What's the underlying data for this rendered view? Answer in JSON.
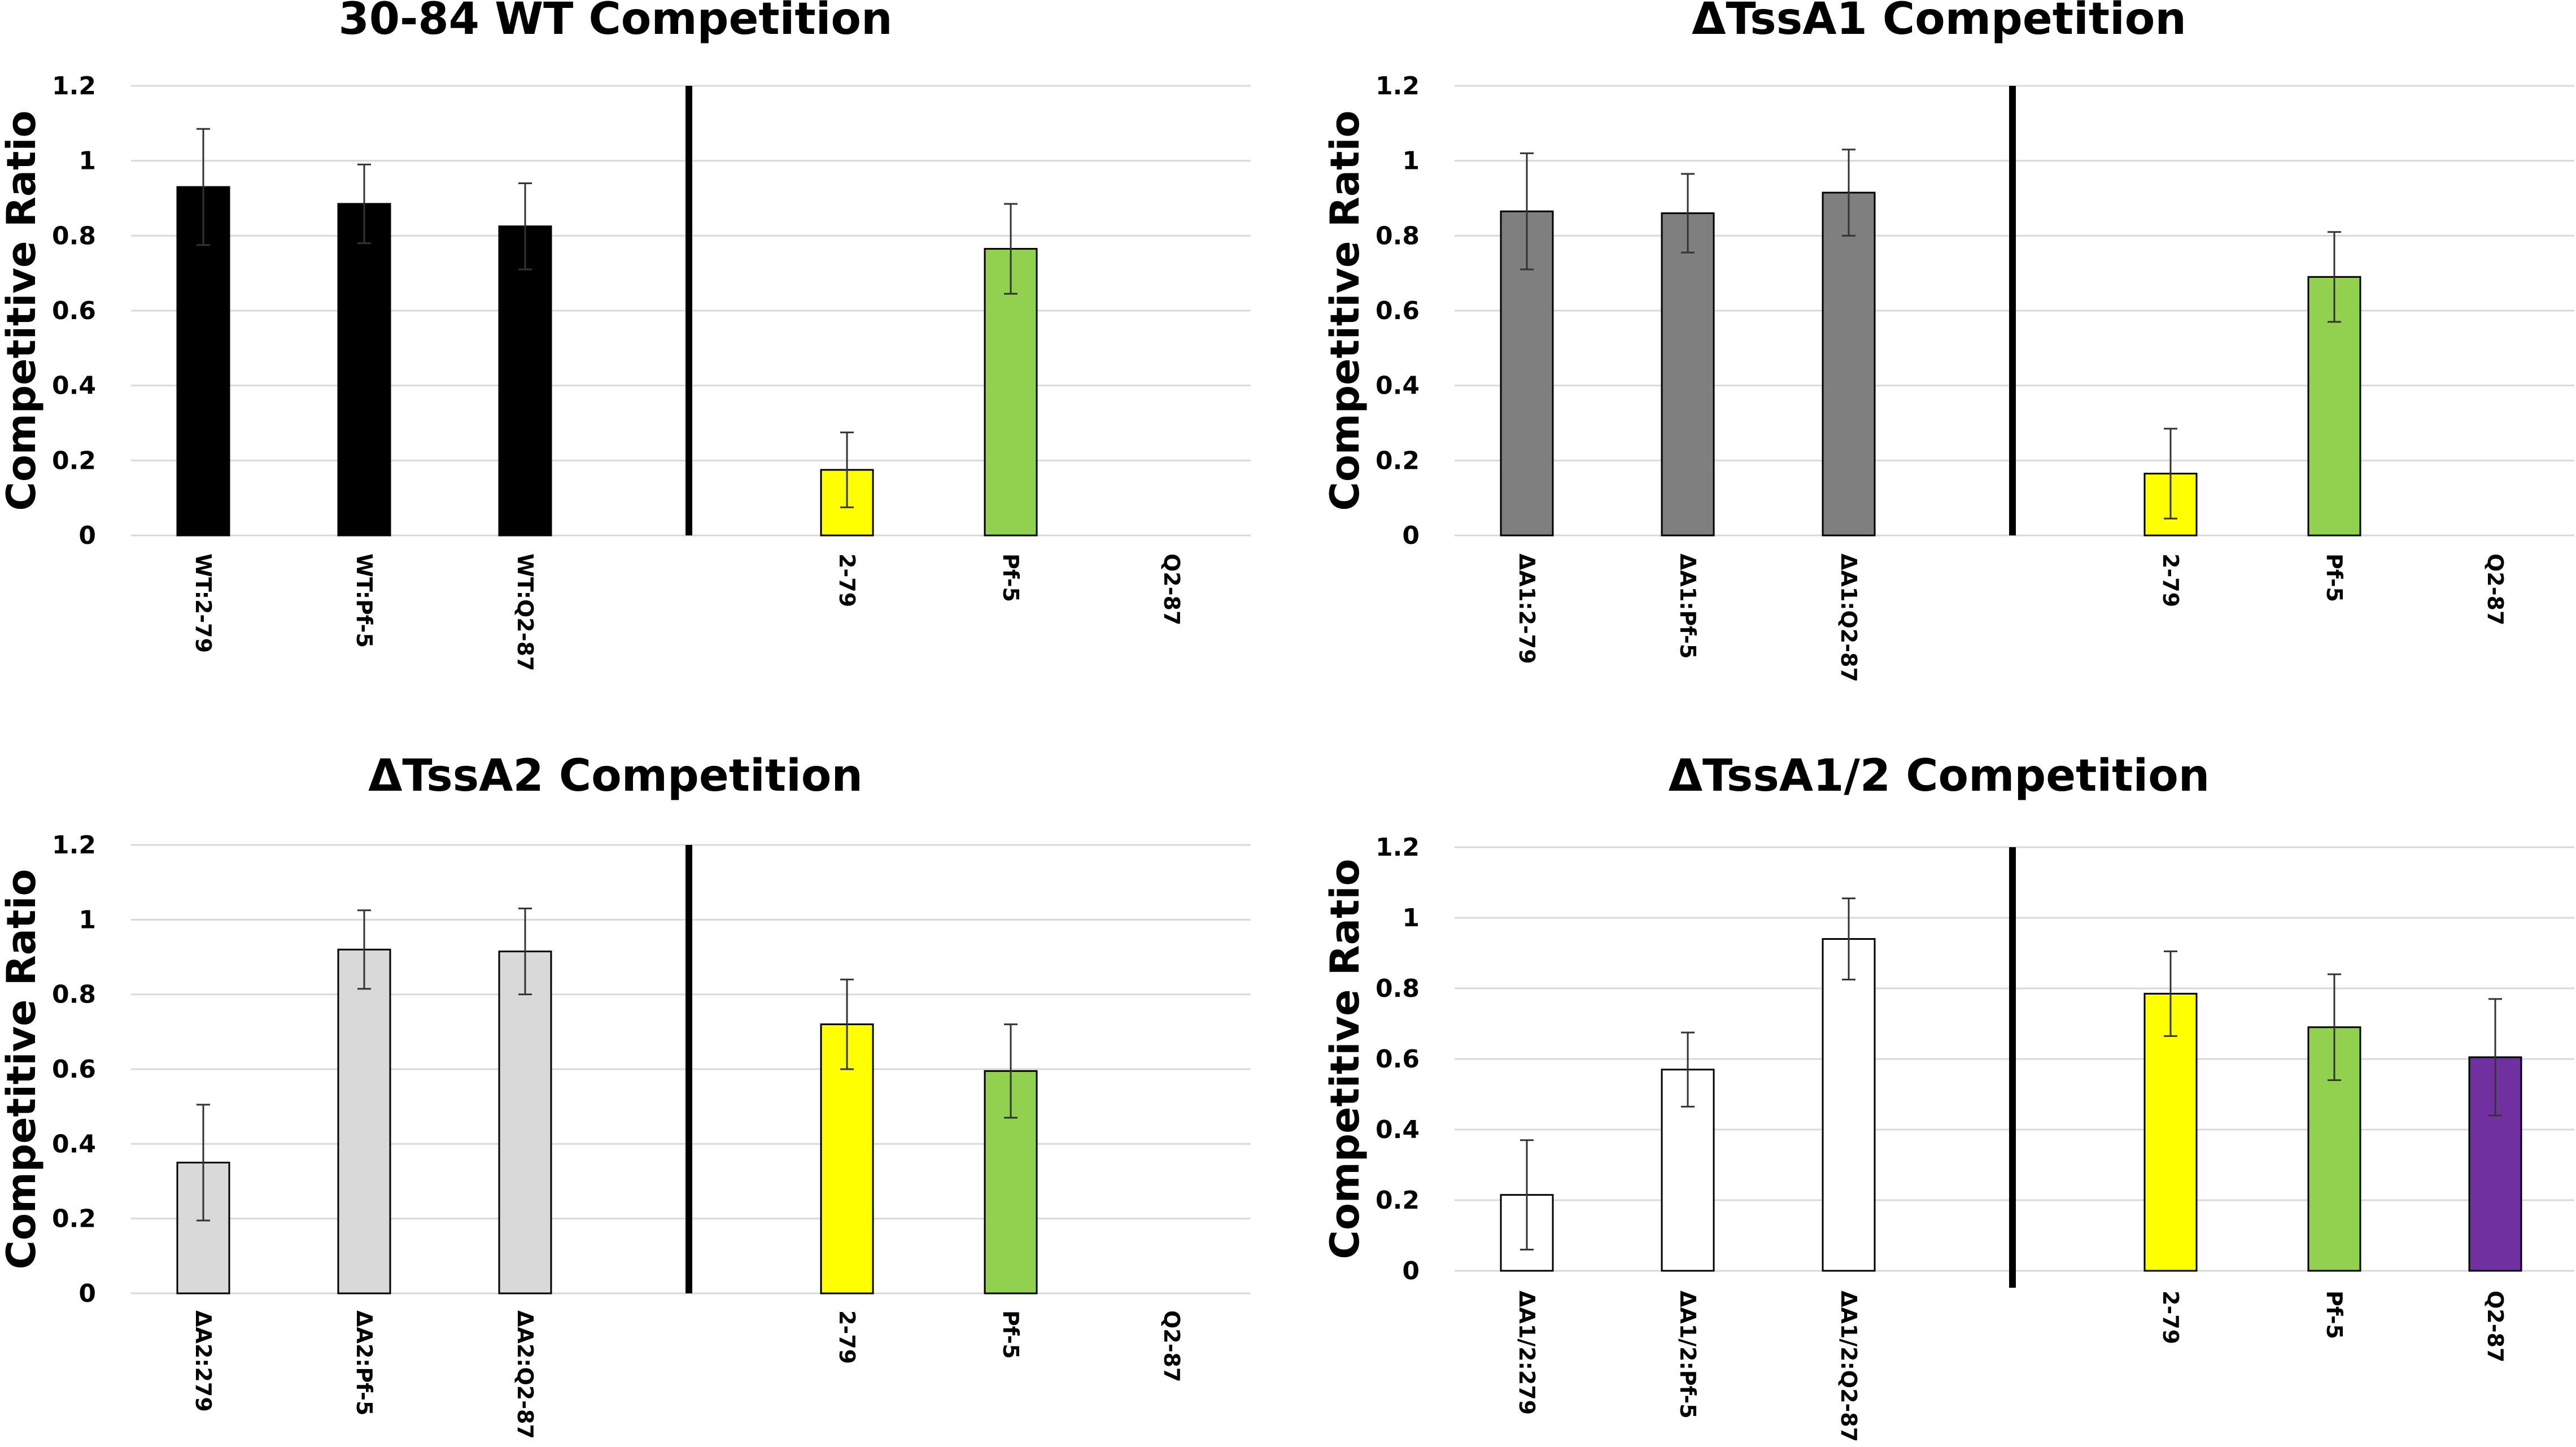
{
  "chart_data": [
    {
      "type": "bar",
      "title": "30-84 WT Competition",
      "ylabel": "Competitive Ratio",
      "xlabel": "",
      "ylim": [
        0,
        1.2
      ],
      "yticks": [
        "0",
        "0.2",
        "0.4",
        "0.6",
        "0.8",
        "1",
        "1.2"
      ],
      "categories": [
        "WT:2-79",
        "WT:Pf-5",
        "WT:Q2-87",
        "2-79",
        "Pf-5",
        "Q2-87"
      ],
      "values": [
        0.93,
        0.885,
        0.825,
        0.175,
        0.765,
        0
      ],
      "errors": [
        0.155,
        0.105,
        0.115,
        0.1,
        0.12,
        0
      ],
      "colors": [
        "#000000",
        "#000000",
        "#000000",
        "#ffff00",
        "#92d050",
        "#ffffff"
      ],
      "divider_after_index": 2
    },
    {
      "type": "bar",
      "title": "ΔTssA1 Competition",
      "ylabel": "Competitive Ratio",
      "xlabel": "",
      "ylim": [
        0,
        1.2
      ],
      "yticks": [
        "0",
        "0.2",
        "0.4",
        "0.6",
        "0.8",
        "1",
        "1.2"
      ],
      "categories": [
        "ΔA1:2-79",
        "ΔA1:Pf-5",
        "ΔA1:Q2-87",
        "2-79",
        "Pf-5",
        "Q2-87"
      ],
      "values": [
        0.865,
        0.86,
        0.915,
        0.165,
        0.69,
        0
      ],
      "errors": [
        0.155,
        0.105,
        0.115,
        0.12,
        0.12,
        0
      ],
      "colors": [
        "#7f7f7f",
        "#7f7f7f",
        "#7f7f7f",
        "#ffff00",
        "#92d050",
        "#ffffff"
      ],
      "divider_after_index": 2
    },
    {
      "type": "bar",
      "title": "ΔTssA2 Competition",
      "ylabel": "Competitive Ratio",
      "xlabel": "",
      "ylim": [
        0,
        1.2
      ],
      "yticks": [
        "0",
        "0.2",
        "0.4",
        "0.6",
        "0.8",
        "1",
        "1.2"
      ],
      "categories": [
        "ΔA2:279",
        "ΔA2:Pf-5",
        "ΔA2:Q2-87",
        "2-79",
        "Pf-5",
        "Q2-87"
      ],
      "values": [
        0.35,
        0.92,
        0.915,
        0.72,
        0.595,
        0
      ],
      "errors": [
        0.155,
        0.105,
        0.115,
        0.12,
        0.125,
        0
      ],
      "colors": [
        "#d9d9d9",
        "#d9d9d9",
        "#d9d9d9",
        "#ffff00",
        "#92d050",
        "#ffffff"
      ],
      "divider_after_index": 2
    },
    {
      "type": "bar",
      "title": "ΔTssA1/2 Competition",
      "ylabel": "Competitive Ratio",
      "xlabel": "",
      "ylim": [
        0,
        1.2
      ],
      "yticks": [
        "0",
        "0.2",
        "0.4",
        "0.6",
        "0.8",
        "1",
        "1.2"
      ],
      "categories": [
        "ΔA1/2:279",
        "ΔA1/2:Pf-5",
        "ΔA1/2:Q2-87",
        "2-79",
        "Pf-5",
        "Q2-87"
      ],
      "values": [
        0.215,
        0.57,
        0.94,
        0.785,
        0.69,
        0.605
      ],
      "errors": [
        0.155,
        0.105,
        0.115,
        0.12,
        0.15,
        0.165
      ],
      "colors": [
        "#ffffff",
        "#ffffff",
        "#ffffff",
        "#ffff00",
        "#92d050",
        "#7030a0"
      ],
      "divider_after_index": 2
    }
  ]
}
